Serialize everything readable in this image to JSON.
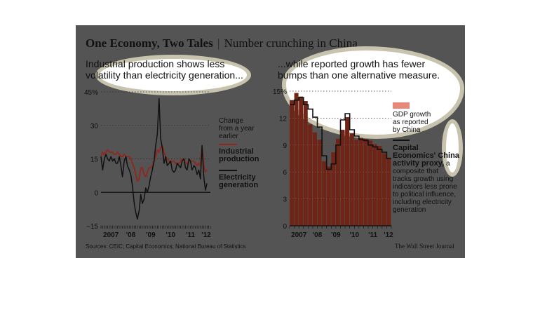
{
  "title": {
    "bold": "One Economy, Two Tales",
    "separator": "|",
    "sub": "Number crunching in China"
  },
  "left": {
    "subhead1": "Industrial production shows less",
    "subhead2": "volatility than electricity generation...",
    "note1": "Change",
    "note2": "from a year",
    "note3": "earlier",
    "legend_ip": [
      "Industrial",
      "production"
    ],
    "legend_el": [
      "Electricity",
      "generation"
    ]
  },
  "right": {
    "subhead1": "...while reported growth has fewer",
    "subhead2": "bumps than one alternative measure.",
    "legend_gdp": [
      "GDP growth",
      "as reported",
      "by China"
    ],
    "legend_cap_bold": [
      "Capital",
      "Economics' China",
      "activity proxy,"
    ],
    "legend_cap_rest": [
      "a",
      "composite that",
      "tracks growth using",
      "indicators less prone",
      "to political influence,",
      "including electricity",
      "generation"
    ]
  },
  "sources": "Sources: CEIC; Capital Economics; National Bureau of Statistics",
  "credit": "The Wall Street Journal",
  "colors": {
    "panel": "#545454",
    "ip_line": "#8b2a20",
    "gdp_bar": "#6e2417",
    "gdp_legend": "#e8887a",
    "line": "#111111"
  },
  "chart_data": [
    {
      "type": "line",
      "ylim": [
        -15,
        45
      ],
      "yticks": [
        "45%",
        "30",
        "15",
        "0",
        "−15"
      ],
      "ytick_values": [
        45,
        30,
        15,
        0,
        -15
      ],
      "xticks": [
        "2007",
        "'08",
        "'09",
        "'10",
        "'11",
        "'12"
      ],
      "x_start": 2007.0,
      "x_end": 2012.5,
      "series": [
        {
          "name": "Industrial production",
          "x": [
            2007.0,
            2007.08,
            2007.17,
            2007.25,
            2007.33,
            2007.42,
            2007.5,
            2007.58,
            2007.67,
            2007.75,
            2007.83,
            2007.92,
            2008.0,
            2008.08,
            2008.17,
            2008.25,
            2008.33,
            2008.42,
            2008.5,
            2008.58,
            2008.67,
            2008.75,
            2008.83,
            2008.92,
            2009.0,
            2009.08,
            2009.17,
            2009.25,
            2009.33,
            2009.42,
            2009.5,
            2009.58,
            2009.67,
            2009.75,
            2009.83,
            2009.92,
            2010.0,
            2010.08,
            2010.17,
            2010.25,
            2010.33,
            2010.42,
            2010.5,
            2010.58,
            2010.67,
            2010.75,
            2010.83,
            2010.92,
            2011.0,
            2011.08,
            2011.17,
            2011.25,
            2011.33,
            2011.42,
            2011.5,
            2011.58,
            2011.67,
            2011.75,
            2011.83,
            2011.92,
            2012.0,
            2012.08,
            2012.17,
            2012.25,
            2012.33
          ],
          "values": [
            16,
            18,
            17,
            18,
            19,
            18,
            18,
            18,
            17,
            17,
            18,
            17,
            16,
            16,
            17,
            16,
            16,
            16,
            15,
            13,
            11,
            8,
            5,
            6,
            11,
            11,
            8,
            7,
            9,
            11,
            11,
            12,
            14,
            16,
            19,
            18,
            20,
            21,
            18,
            16,
            15,
            14,
            13,
            14,
            14,
            13,
            13,
            13,
            14,
            15,
            15,
            13,
            13,
            14,
            14,
            14,
            14,
            13,
            12,
            13,
            12,
            20,
            12,
            9,
            10
          ]
        },
        {
          "name": "Electricity generation",
          "x": [
            2007.0,
            2007.08,
            2007.17,
            2007.25,
            2007.33,
            2007.42,
            2007.5,
            2007.58,
            2007.67,
            2007.75,
            2007.83,
            2007.92,
            2008.0,
            2008.08,
            2008.17,
            2008.25,
            2008.33,
            2008.42,
            2008.5,
            2008.58,
            2008.67,
            2008.75,
            2008.83,
            2008.92,
            2009.0,
            2009.08,
            2009.17,
            2009.25,
            2009.33,
            2009.42,
            2009.5,
            2009.58,
            2009.67,
            2009.75,
            2009.83,
            2009.92,
            2010.0,
            2010.08,
            2010.17,
            2010.25,
            2010.33,
            2010.42,
            2010.5,
            2010.58,
            2010.67,
            2010.75,
            2010.83,
            2010.92,
            2011.0,
            2011.08,
            2011.17,
            2011.25,
            2011.33,
            2011.42,
            2011.5,
            2011.58,
            2011.67,
            2011.75,
            2011.83,
            2011.92,
            2012.0,
            2012.08,
            2012.17,
            2012.25,
            2012.33
          ],
          "values": [
            16,
            10,
            15,
            17,
            15,
            14,
            16,
            14,
            15,
            13,
            13,
            16,
            12,
            7,
            14,
            16,
            12,
            10,
            8,
            3,
            -5,
            -9,
            -12,
            -8,
            -1,
            -5,
            -3,
            2,
            0,
            3,
            7,
            10,
            14,
            21,
            26,
            42,
            24,
            20,
            13,
            16,
            12,
            13,
            14,
            10,
            9,
            10,
            13,
            12,
            11,
            14,
            15,
            11,
            10,
            15,
            14,
            10,
            12,
            11,
            8,
            10,
            6,
            21,
            7,
            1,
            4
          ]
        }
      ]
    },
    {
      "type": "bar",
      "ylim": [
        0,
        15
      ],
      "yticks": [
        "15%",
        "12",
        "9",
        "6",
        "3",
        "0"
      ],
      "ytick_values": [
        15,
        12,
        9,
        6,
        3,
        0
      ],
      "xticks": [
        "2007",
        "'08",
        "'09",
        "'10",
        "'11",
        "'12"
      ],
      "categories": [
        "2007 Q1",
        "2007 Q2",
        "2007 Q3",
        "2007 Q4",
        "2008 Q1",
        "2008 Q2",
        "2008 Q3",
        "2008 Q4",
        "2009 Q1",
        "2009 Q2",
        "2009 Q3",
        "2009 Q4",
        "2010 Q1",
        "2010 Q2",
        "2010 Q3",
        "2010 Q4",
        "2011 Q1",
        "2011 Q2",
        "2011 Q3",
        "2011 Q4",
        "2012 Q1",
        "2012 Q2"
      ],
      "series": [
        {
          "name": "GDP growth as reported by China",
          "type": "bar",
          "values": [
            14.0,
            14.8,
            14.4,
            13.9,
            11.3,
            10.4,
            9.6,
            7.2,
            6.6,
            8.2,
            9.7,
            10.7,
            12.1,
            10.3,
            9.6,
            9.8,
            9.7,
            9.5,
            9.1,
            8.9,
            8.1,
            7.6
          ]
        },
        {
          "name": "Capital Economics' China activity proxy",
          "type": "step",
          "values": [
            13.5,
            14.0,
            14.3,
            13.5,
            13.0,
            12.1,
            11.0,
            7.8,
            6.3,
            6.9,
            9.0,
            11.8,
            12.5,
            10.7,
            10.0,
            9.6,
            9.5,
            9.0,
            8.8,
            8.5,
            8.2,
            7.5
          ]
        }
      ]
    }
  ]
}
